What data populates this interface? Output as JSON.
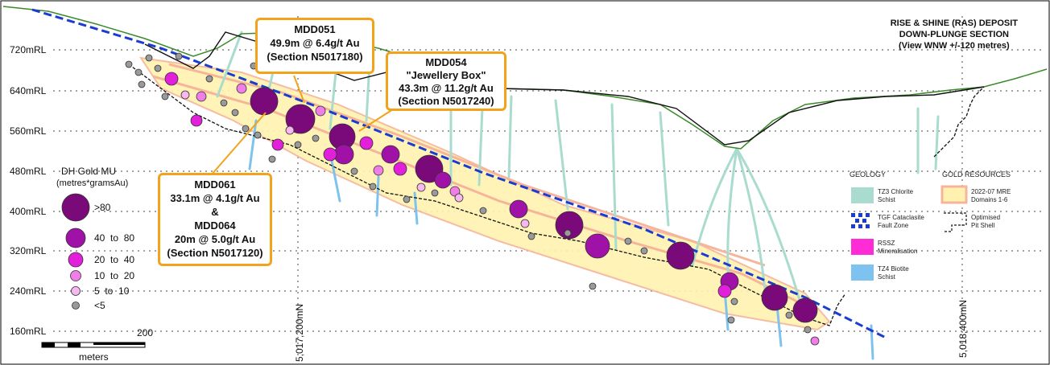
{
  "title": {
    "line1": "RISE & SHINE (RAS) DEPOSIT",
    "line2": "DOWN-PLUNGE SECTION",
    "line3": "(View WNW +/-120 metres)"
  },
  "rl_labels": [
    "720mRL",
    "640mRL",
    "560mRL",
    "480mRL",
    "400mRL",
    "320mRL",
    "240mRL",
    "160mRL"
  ],
  "northings": [
    "5,017,200mN",
    "5,018,400mN"
  ],
  "callouts": {
    "mdd051": {
      "line1": "MDD051",
      "line2": "49.9m @ 6.4g/t Au",
      "line3": "(Section N5017180)"
    },
    "mdd054": {
      "line1": "MDD054",
      "line2": "\"Jewellery Box\"",
      "line3": "43.3m @ 11.2g/t Au",
      "line4": "(Section N5017240)"
    },
    "mdd061": {
      "line1": "MDD061",
      "line2": "33.1m @ 4.1g/t Au",
      "line3": "&",
      "line4": "MDD064",
      "line5": "20m @ 5.0g/t Au",
      "line6": "(Section N5017120)"
    }
  },
  "mu_legend": {
    "title1": "DH Gold MU",
    "title2": "(metres*gramsAu)",
    "items": [
      ">80",
      "40  to  80",
      "20  to  40",
      "10  to  20",
      "5  to  10",
      "<5"
    ]
  },
  "scale": {
    "value": "200",
    "unit": "meters"
  },
  "geology": {
    "title": "GEOLOGY",
    "items": [
      {
        "line1": "TZ3 Chlorite",
        "line2": "Schist"
      },
      {
        "line1": "TGF Cataclasite",
        "line2": "Fault Zone"
      },
      {
        "line1": "RSSZ",
        "line2": "Mineralisation"
      },
      {
        "line1": "TZ4 Biotite",
        "line2": "Schist"
      }
    ]
  },
  "resources": {
    "title": "GOLD RESOURCES",
    "items": [
      {
        "line1": "2022-07 MRE",
        "line2": "Domains 1-6"
      },
      {
        "line1": "Optimised",
        "line2": "Pit Shell"
      }
    ]
  },
  "colors": {
    "callout_border": "#f2a31b",
    "topography": "#3a8a2a",
    "pit_shell": "#111111",
    "fault": "#1a3ccf",
    "chlorite": "#a9dccf",
    "mineralisation": "#ff2bd6",
    "biotite": "#7ec3ef",
    "resource_fill": "#fff2b0",
    "resource_edge": "#f6b59a",
    "mu_80": "#7a0a7a",
    "mu_40": "#a011a8",
    "mu_20": "#e21fdb",
    "mu_10": "#f07de8",
    "mu_5": "#f6b8ef",
    "mu_lt5": "#9a9a9a"
  }
}
